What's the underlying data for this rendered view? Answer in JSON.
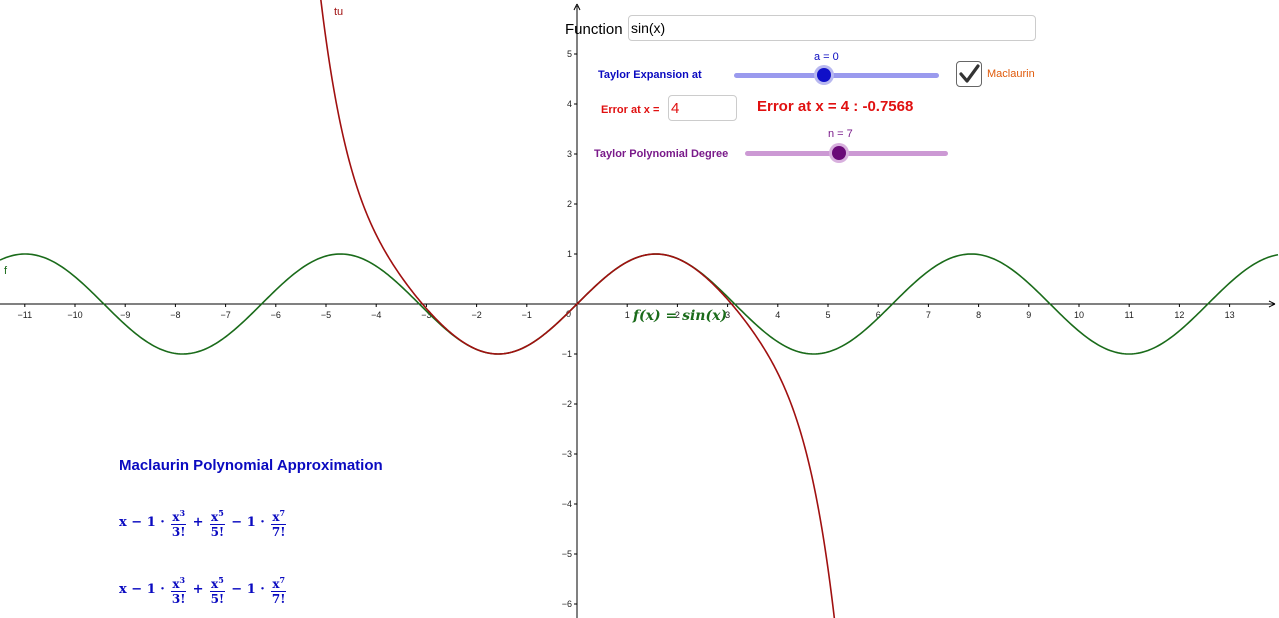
{
  "function": {
    "label": "Function",
    "value": "sin(x)"
  },
  "taylor": {
    "label": "Taylor Expansion at",
    "a_value_label": "a = 0",
    "maclaurin_label": "Maclaurin",
    "maclaurin_checked": true
  },
  "error": {
    "label": "Error at x =",
    "x_value": "4",
    "result": "Error at x = 4 : -0.7568"
  },
  "degree": {
    "label": "Taylor Polynomial Degree",
    "n_value_label": "n = 7"
  },
  "approximation": {
    "title": "Maclaurin Polynomial Approximation",
    "polynomial": {
      "lead": "x − 1 ·",
      "term1": {
        "num": "x",
        "exp": "3",
        "den": "3!"
      },
      "op1": "+",
      "term2": {
        "num": "x",
        "exp": "5",
        "den": "5!"
      },
      "op2": "− 1 ·",
      "term3": {
        "num": "x",
        "exp": "7",
        "den": "7!"
      }
    }
  },
  "graph": {
    "f_label": "f",
    "taylor_label": "tu",
    "formula_label": "f(x) = sin(x)",
    "x_ticks": [
      -11,
      -10,
      -9,
      -8,
      -7,
      -6,
      -5,
      -4,
      -3,
      -2,
      -1,
      1,
      2,
      3,
      4,
      5,
      6,
      7,
      8,
      9,
      10,
      11,
      12,
      13
    ],
    "y_ticks": [
      -6,
      -5,
      -4,
      -3,
      -2,
      -1,
      1,
      2,
      3,
      4,
      5
    ],
    "origin_label": "0",
    "x_range": [
      -11.5,
      13.9
    ],
    "y_range": [
      -6.25,
      6.1
    ],
    "colors": {
      "f": "#1a6b1a",
      "taylor": "#a01010",
      "axes": "#000000"
    }
  }
}
